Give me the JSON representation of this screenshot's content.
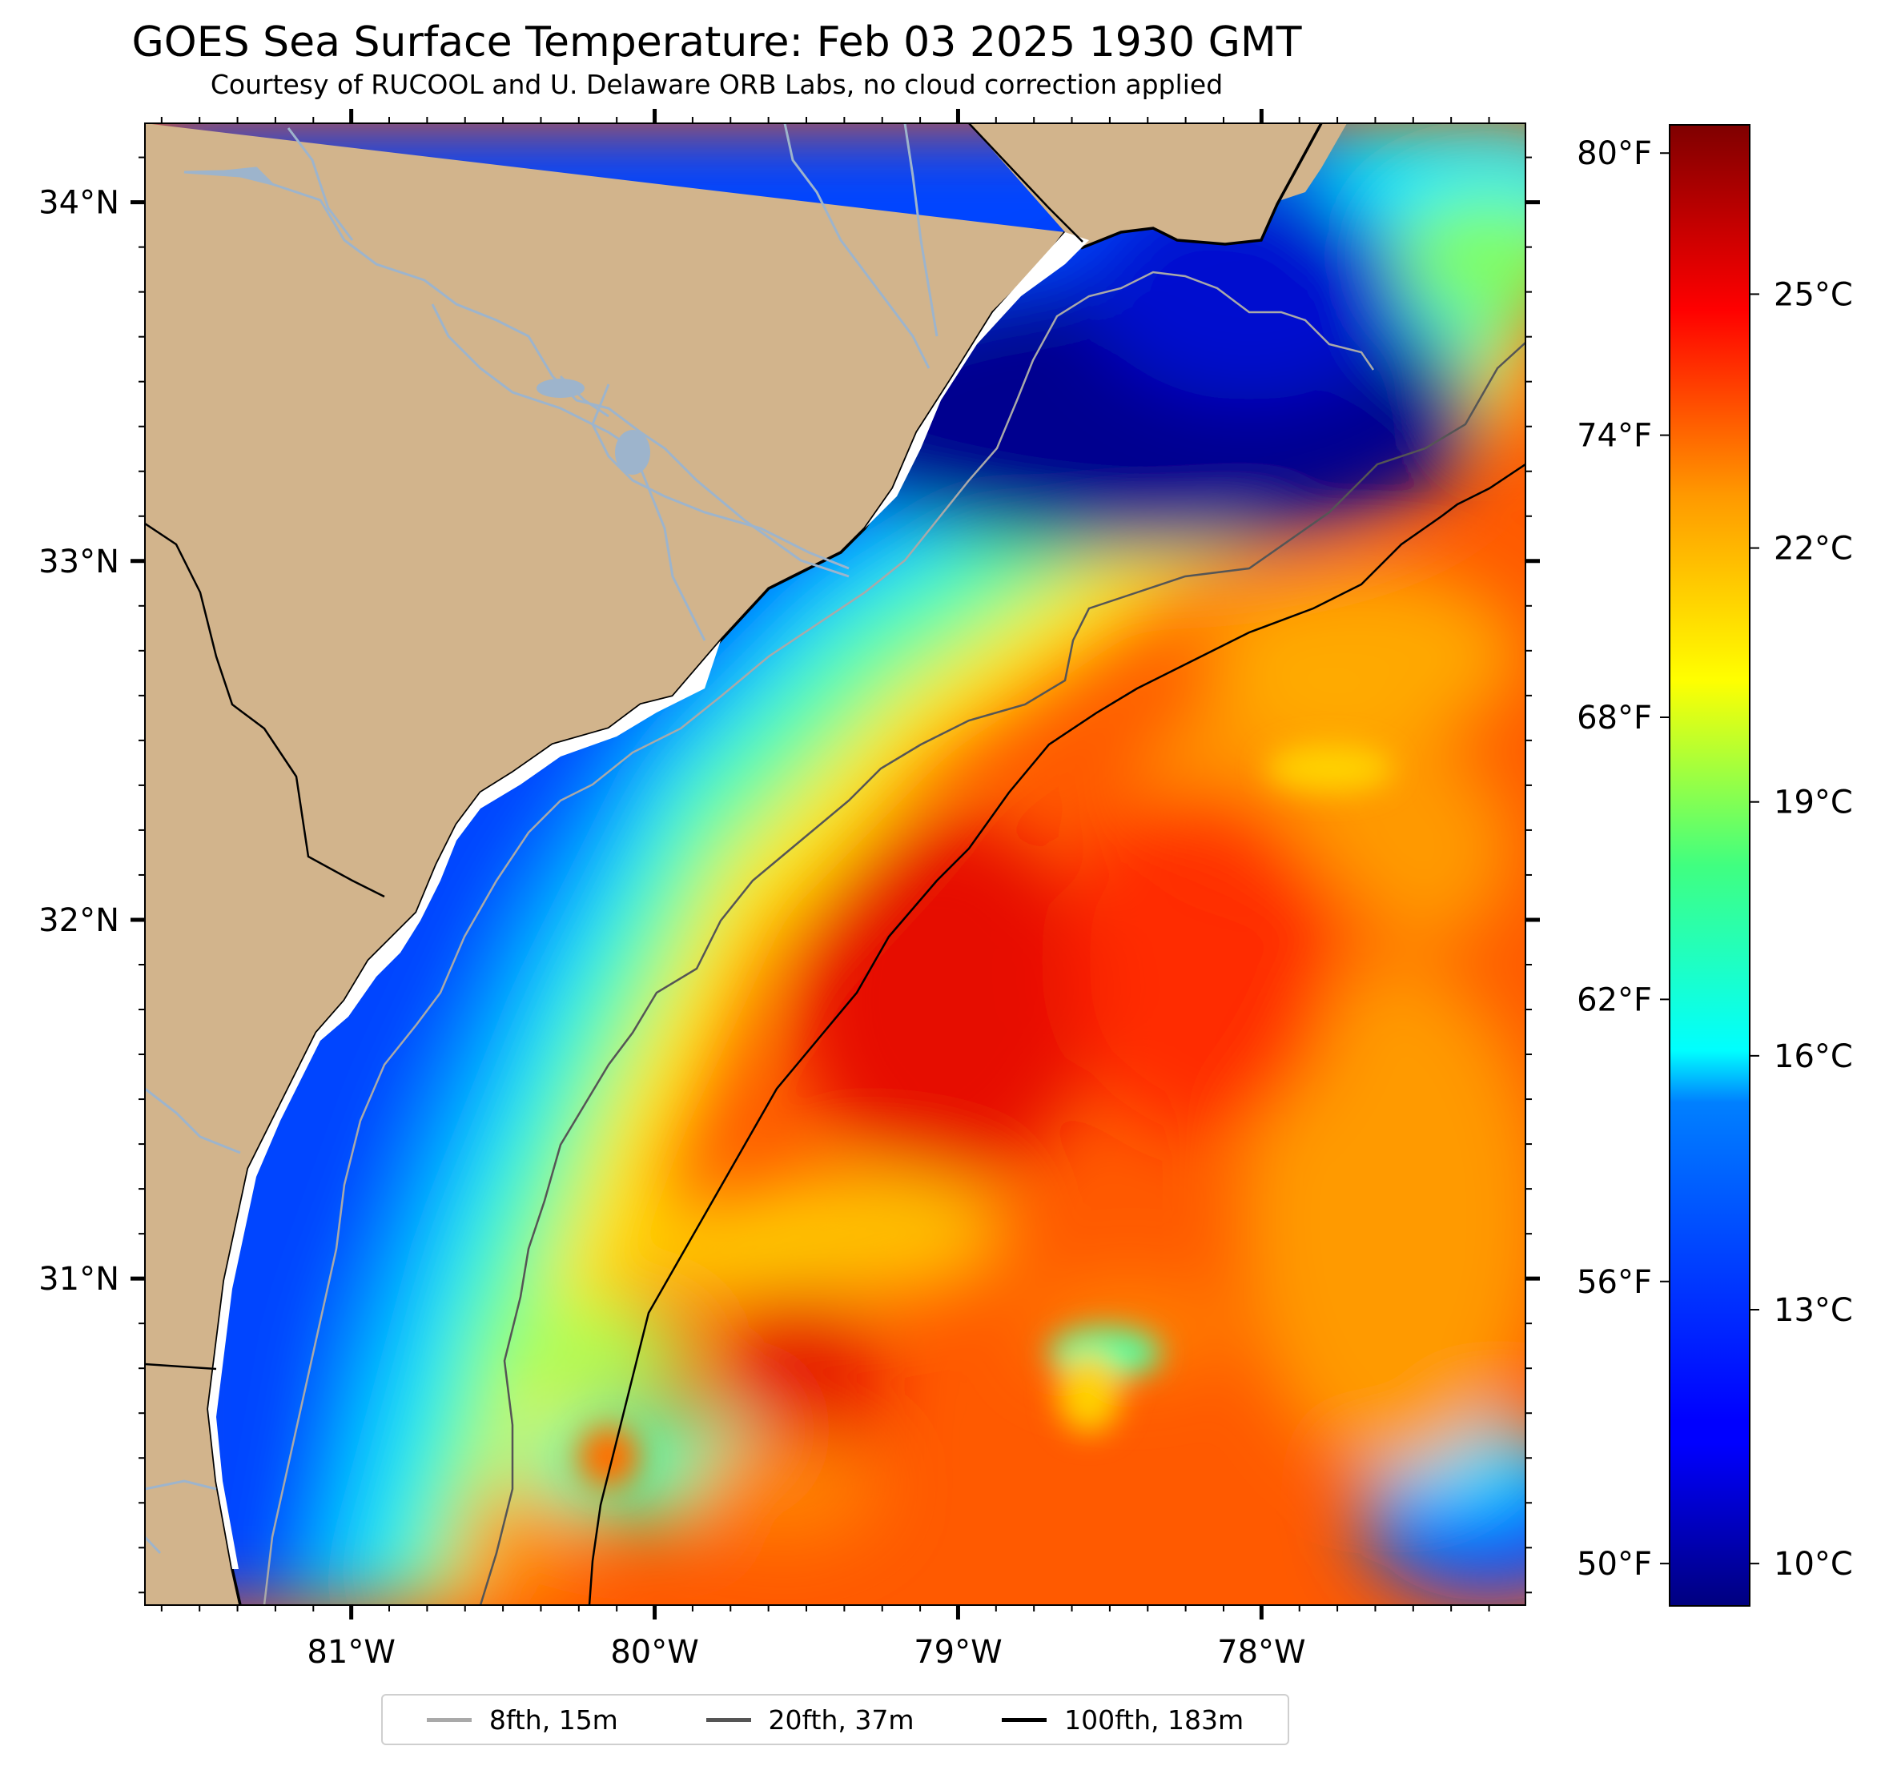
{
  "title": "GOES Sea Surface Temperature: Feb 03 2025 1930 GMT",
  "subtitle": "Courtesy of RUCOOL and U. Delaware ORB Labs, no cloud correction applied",
  "map": {
    "extent": {
      "lon_min": -81.68,
      "lon_max": -77.13,
      "lat_min": 30.09,
      "lat_max": 34.22
    },
    "land_color": "#d2b48c",
    "coastline_color": "#000000",
    "river_color": "#9db4cc",
    "lat_ticks": [
      {
        "value": 34,
        "label": "34°N"
      },
      {
        "value": 33,
        "label": "33°N"
      },
      {
        "value": 32,
        "label": "32°N"
      },
      {
        "value": 31,
        "label": "31°N"
      }
    ],
    "lon_ticks": [
      {
        "value": -81,
        "label": "81°W"
      },
      {
        "value": -80,
        "label": "80°W"
      },
      {
        "value": -79,
        "label": "79°W"
      },
      {
        "value": -78,
        "label": "78°W"
      }
    ]
  },
  "colorbar": {
    "colormap": "jet",
    "range_c": [
      9.5,
      27
    ],
    "celsius_ticks": [
      {
        "value": 25,
        "label": "25°C"
      },
      {
        "value": 22,
        "label": "22°C"
      },
      {
        "value": 19,
        "label": "19°C"
      },
      {
        "value": 16,
        "label": "16°C"
      },
      {
        "value": 13,
        "label": "13°C"
      },
      {
        "value": 10,
        "label": "10°C"
      }
    ],
    "fahrenheit_ticks": [
      {
        "value": 80,
        "label": "80°F"
      },
      {
        "value": 74,
        "label": "74°F"
      },
      {
        "value": 68,
        "label": "68°F"
      },
      {
        "value": 62,
        "label": "62°F"
      },
      {
        "value": 56,
        "label": "56°F"
      },
      {
        "value": 50,
        "label": "50°F"
      }
    ]
  },
  "legend": [
    {
      "label": "8fth, 15m",
      "color": "#a9a9a9"
    },
    {
      "label": "20fth, 37m",
      "color": "#555555"
    },
    {
      "label": "100fth, 183m",
      "color": "#000000"
    }
  ]
}
